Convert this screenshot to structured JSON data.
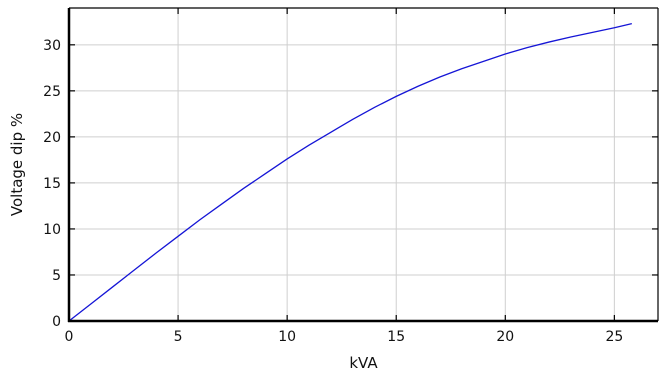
{
  "chart_data": {
    "type": "line",
    "title": "",
    "xlabel": "kVA",
    "ylabel": "Voltage dip %",
    "xlim": [
      0,
      27
    ],
    "ylim": [
      0,
      34
    ],
    "x_ticks": [
      0,
      5,
      10,
      15,
      20,
      25
    ],
    "y_ticks": [
      0,
      5,
      10,
      15,
      20,
      25,
      30
    ],
    "grid": true,
    "line_color": "#1515d6",
    "series": [
      {
        "x": [
          0,
          1,
          2,
          3,
          4,
          5,
          6,
          7,
          8,
          9,
          10,
          11,
          12,
          13,
          14,
          15,
          16,
          17,
          18,
          19,
          20,
          21,
          22,
          23,
          24,
          25,
          25.8
        ],
        "y": [
          0,
          1.85,
          3.7,
          5.55,
          7.4,
          9.2,
          11.0,
          12.7,
          14.4,
          16.0,
          17.6,
          19.1,
          20.5,
          21.9,
          23.2,
          24.4,
          25.5,
          26.5,
          27.4,
          28.2,
          29.0,
          29.7,
          30.3,
          30.85,
          31.35,
          31.85,
          32.3
        ]
      }
    ]
  }
}
